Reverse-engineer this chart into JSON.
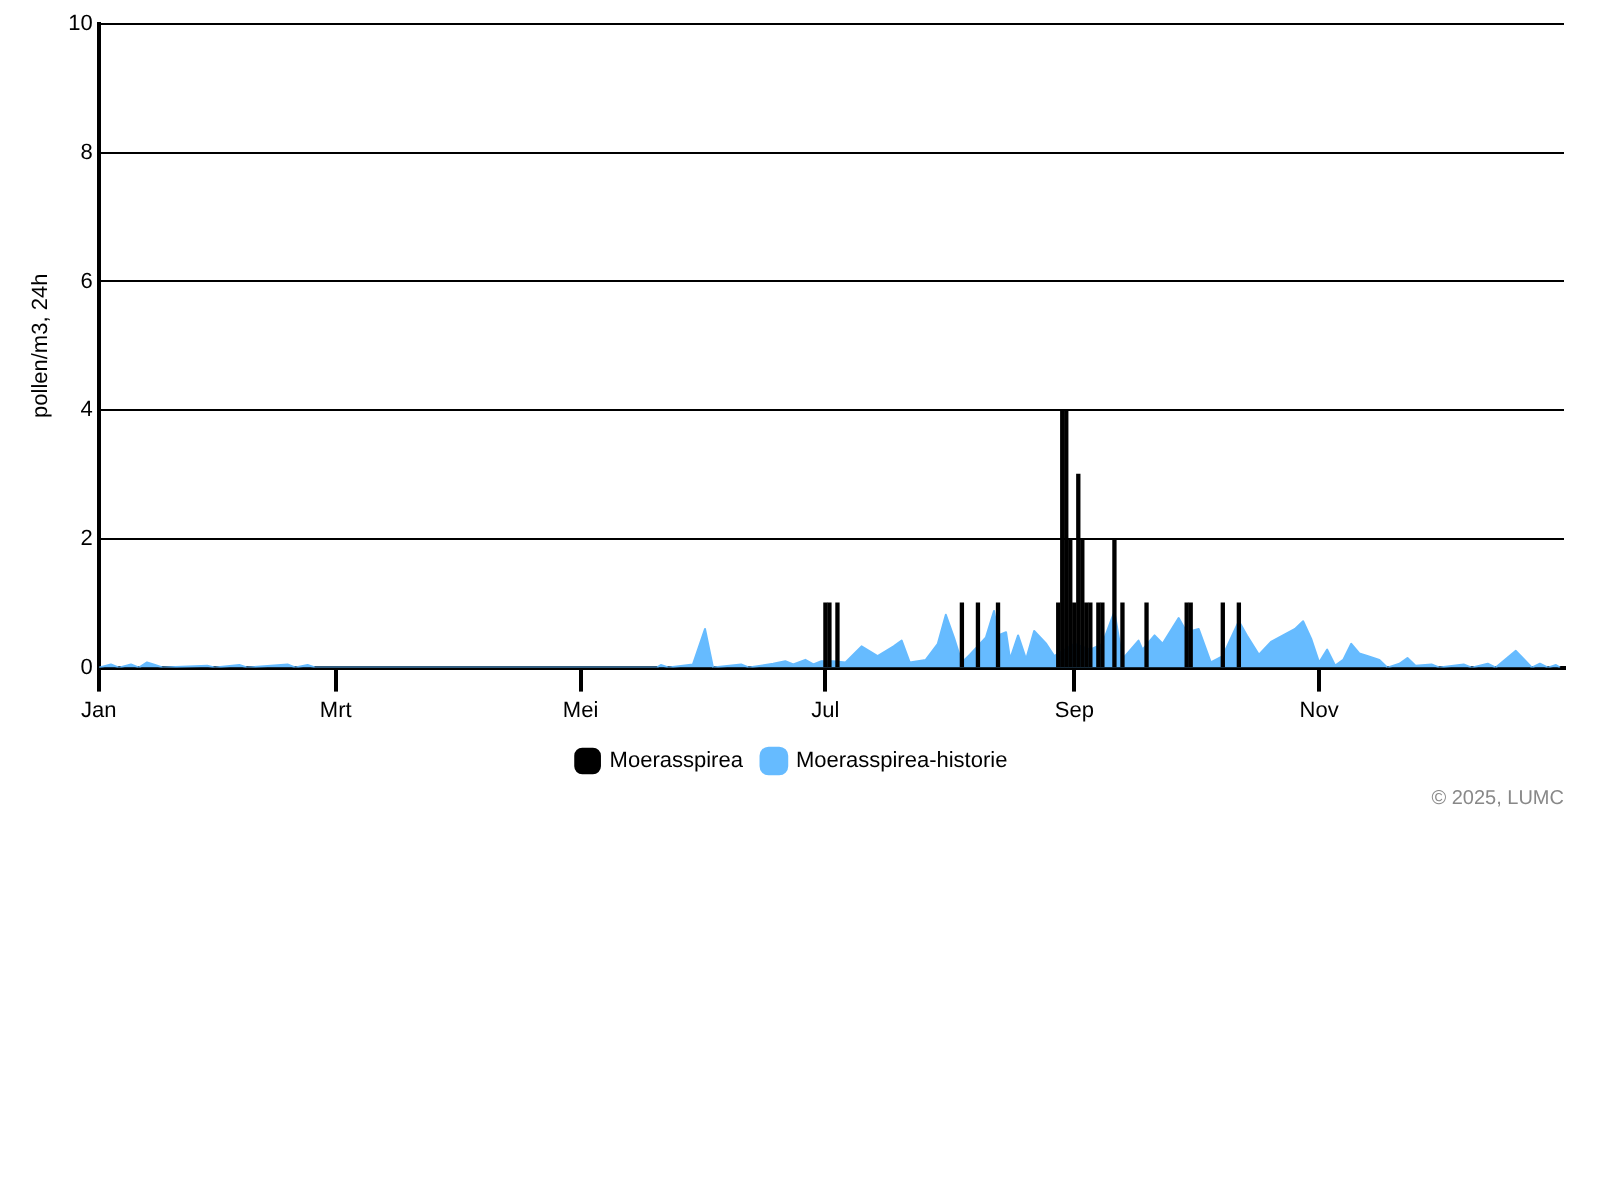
{
  "chart_data": {
    "type": "bar",
    "ylabel": "pollen/m3, 24h",
    "xlim": [
      "2025-01-01",
      "2026-01-01"
    ],
    "xticks": [
      {
        "value": "2025-01-01",
        "label": "Jan"
      },
      {
        "value": "2025-03-01",
        "label": "Mrt"
      },
      {
        "value": "2025-05-01",
        "label": "Mei"
      },
      {
        "value": "2025-07-01",
        "label": "Jul"
      },
      {
        "value": "2025-09-01",
        "label": "Sep"
      },
      {
        "value": "2025-11-01",
        "label": "Nov"
      }
    ],
    "ylim": [
      0,
      10
    ],
    "yticks": [
      0,
      2,
      4,
      6,
      8,
      10
    ],
    "grid": "y",
    "legend": "bottom",
    "annotations": [
      "© 2025, LUMC"
    ],
    "series": [
      {
        "name": "Moerasspirea",
        "color": "#000000",
        "x": [
          "2025-07-01",
          "2025-07-02",
          "2025-07-04",
          "2025-08-04",
          "2025-08-08",
          "2025-08-13",
          "2025-08-28",
          "2025-08-29",
          "2025-08-30",
          "2025-08-31",
          "2025-09-01",
          "2025-09-02",
          "2025-09-03",
          "2025-09-04",
          "2025-09-05",
          "2025-09-07",
          "2025-09-08",
          "2025-09-11",
          "2025-09-13",
          "2025-09-19",
          "2025-09-29",
          "2025-09-30",
          "2025-10-08",
          "2025-10-12"
        ],
        "values": [
          1,
          1,
          1,
          1,
          1,
          1,
          1,
          4,
          4,
          2,
          1,
          3,
          2,
          1,
          1,
          1,
          1,
          2,
          1,
          1,
          1,
          1,
          1,
          1
        ]
      },
      {
        "name": "Moerasspirea-historie",
        "type": "area",
        "color": "#66bbff",
        "x": [
          "2025-01-01",
          "2025-01-04",
          "2025-01-06",
          "2025-01-09",
          "2025-01-11",
          "2025-01-13",
          "2025-01-15",
          "2025-01-17",
          "2025-01-28",
          "2025-01-30",
          "2025-02-05",
          "2025-02-07",
          "2025-02-17",
          "2025-02-19",
          "2025-02-22",
          "2025-02-24",
          "2025-05-20",
          "2025-05-21",
          "2025-05-23",
          "2025-05-29",
          "2025-06-01",
          "2025-06-03",
          "2025-06-10",
          "2025-06-12",
          "2025-06-18",
          "2025-06-21",
          "2025-06-23",
          "2025-06-26",
          "2025-06-28",
          "2025-06-30",
          "2025-07-03",
          "2025-07-06",
          "2025-07-10",
          "2025-07-14",
          "2025-07-18",
          "2025-07-20",
          "2025-07-22",
          "2025-07-26",
          "2025-07-29",
          "2025-07-31",
          "2025-08-02",
          "2025-08-04",
          "2025-08-06",
          "2025-08-10",
          "2025-08-12",
          "2025-08-13",
          "2025-08-15",
          "2025-08-16",
          "2025-08-18",
          "2025-08-20",
          "2025-08-22",
          "2025-08-25",
          "2025-08-27",
          "2025-09-01",
          "2025-09-05",
          "2025-09-08",
          "2025-09-11",
          "2025-09-13",
          "2025-09-17",
          "2025-09-18",
          "2025-09-21",
          "2025-09-23",
          "2025-09-27",
          "2025-09-29",
          "2025-10-02",
          "2025-10-05",
          "2025-10-08",
          "2025-10-12",
          "2025-10-14",
          "2025-10-17",
          "2025-10-20",
          "2025-10-23",
          "2025-10-26",
          "2025-10-28",
          "2025-10-30",
          "2025-11-01",
          "2025-11-03",
          "2025-11-05",
          "2025-11-07",
          "2025-11-09",
          "2025-11-11",
          "2025-11-13",
          "2025-11-16",
          "2025-11-18",
          "2025-11-21",
          "2025-11-23",
          "2025-11-25",
          "2025-11-29",
          "2025-12-01",
          "2025-12-07",
          "2025-12-09",
          "2025-12-13",
          "2025-12-15",
          "2025-12-20",
          "2025-12-22",
          "2025-12-24",
          "2025-12-26",
          "2025-12-28",
          "2025-12-30",
          "2025-12-31"
        ],
        "values": [
          0,
          0.05,
          0,
          0.05,
          0,
          0.08,
          0.04,
          0,
          0.03,
          0,
          0.04,
          0,
          0.05,
          0,
          0.04,
          0,
          0,
          0.04,
          0,
          0.05,
          0.6,
          0,
          0.05,
          0,
          0.06,
          0.1,
          0.05,
          0.12,
          0.05,
          0.1,
          0.1,
          0.08,
          0.33,
          0.18,
          0.33,
          0.42,
          0.08,
          0.12,
          0.37,
          0.82,
          0.47,
          0.08,
          0.2,
          0.47,
          0.88,
          0.5,
          0.55,
          0.13,
          0.5,
          0.13,
          0.57,
          0.37,
          0.18,
          0.37,
          0.28,
          0.37,
          0.87,
          0.13,
          0.42,
          0.28,
          0.5,
          0.37,
          0.77,
          0.55,
          0.6,
          0.08,
          0.18,
          0.72,
          0.5,
          0.2,
          0.4,
          0.5,
          0.6,
          0.72,
          0.45,
          0.08,
          0.28,
          0.03,
          0.12,
          0.37,
          0.22,
          0.18,
          0.12,
          0,
          0.06,
          0.15,
          0.03,
          0.05,
          0,
          0.05,
          0,
          0.06,
          0,
          0.26,
          0.13,
          0,
          0.06,
          0,
          0.04,
          0
        ]
      }
    ]
  }
}
